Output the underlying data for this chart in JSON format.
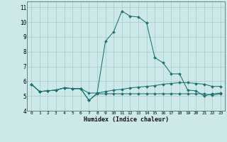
{
  "bg_color": "#cce8e8",
  "line_color": "#1e7272",
  "grid_color": "#aacfcf",
  "xlabel": "Humidex (Indice chaleur)",
  "x_ticks": [
    0,
    1,
    2,
    3,
    4,
    5,
    6,
    7,
    8,
    9,
    10,
    11,
    12,
    13,
    14,
    15,
    16,
    17,
    18,
    19,
    20,
    21,
    22,
    23
  ],
  "ylim": [
    4,
    11.4
  ],
  "xlim": [
    -0.5,
    23.5
  ],
  "yticks": [
    4,
    5,
    6,
    7,
    8,
    9,
    10,
    11
  ],
  "line1_y": [
    5.8,
    5.3,
    5.35,
    5.4,
    5.55,
    5.5,
    5.5,
    4.7,
    5.15,
    5.15,
    5.15,
    5.15,
    5.15,
    5.15,
    5.15,
    5.15,
    5.15,
    5.15,
    5.15,
    5.15,
    5.15,
    5.15,
    5.05,
    5.15
  ],
  "line2_y": [
    5.8,
    5.3,
    5.35,
    5.4,
    5.55,
    5.5,
    5.5,
    5.2,
    5.2,
    5.3,
    5.4,
    5.45,
    5.55,
    5.6,
    5.65,
    5.7,
    5.8,
    5.85,
    5.9,
    5.9,
    5.85,
    5.8,
    5.65,
    5.65
  ],
  "line3_y": [
    5.8,
    5.3,
    5.35,
    5.4,
    5.55,
    5.5,
    5.5,
    4.7,
    5.2,
    8.7,
    9.35,
    10.75,
    10.4,
    10.35,
    9.95,
    7.6,
    7.25,
    6.5,
    6.5,
    5.4,
    5.35,
    5.0,
    5.15,
    5.2
  ]
}
